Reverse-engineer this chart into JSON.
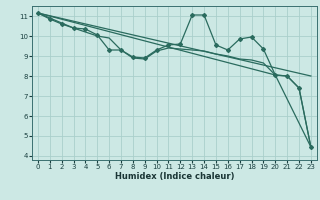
{
  "bg_color": "#cce8e4",
  "grid_color": "#aacfcb",
  "line_color": "#2a6b5e",
  "xlabel": "Humidex (Indice chaleur)",
  "xlim": [
    -0.5,
    23.5
  ],
  "ylim": [
    3.8,
    11.5
  ],
  "xticks": [
    0,
    1,
    2,
    3,
    4,
    5,
    6,
    7,
    8,
    9,
    10,
    11,
    12,
    13,
    14,
    15,
    16,
    17,
    18,
    19,
    20,
    21,
    22,
    23
  ],
  "yticks": [
    4,
    5,
    6,
    7,
    8,
    9,
    10,
    11
  ],
  "series": [
    [
      0,
      11.15
    ],
    [
      1,
      10.85
    ],
    [
      2,
      10.6
    ],
    [
      3,
      10.4
    ],
    [
      4,
      10.35
    ],
    [
      5,
      10.05
    ],
    [
      6,
      9.3
    ],
    [
      7,
      9.3
    ],
    [
      8,
      8.95
    ],
    [
      9,
      8.9
    ],
    [
      10,
      9.3
    ],
    [
      11,
      9.55
    ],
    [
      12,
      9.6
    ],
    [
      13,
      11.05
    ],
    [
      14,
      11.05
    ],
    [
      15,
      9.55
    ],
    [
      16,
      9.3
    ],
    [
      17,
      9.85
    ],
    [
      18,
      9.95
    ],
    [
      19,
      9.35
    ],
    [
      20,
      8.05
    ],
    [
      21,
      8.0
    ],
    [
      22,
      7.4
    ],
    [
      23,
      4.45
    ]
  ],
  "line2": [
    [
      0,
      11.15
    ],
    [
      3,
      10.4
    ],
    [
      5,
      10.0
    ],
    [
      6,
      9.9
    ],
    [
      7,
      9.3
    ],
    [
      8,
      8.9
    ],
    [
      9,
      8.85
    ],
    [
      10,
      9.25
    ],
    [
      11,
      9.4
    ],
    [
      12,
      9.35
    ],
    [
      13,
      9.3
    ],
    [
      14,
      9.25
    ],
    [
      15,
      9.1
    ],
    [
      16,
      9.0
    ],
    [
      17,
      8.85
    ],
    [
      18,
      8.8
    ],
    [
      19,
      8.65
    ],
    [
      20,
      8.05
    ],
    [
      21,
      8.0
    ],
    [
      22,
      7.4
    ],
    [
      23,
      4.45
    ]
  ],
  "line3_straight": [
    [
      0,
      11.15
    ],
    [
      23,
      8.0
    ]
  ],
  "line4_straight": [
    [
      0,
      11.15
    ],
    [
      20,
      8.05
    ],
    [
      23,
      4.45
    ]
  ]
}
